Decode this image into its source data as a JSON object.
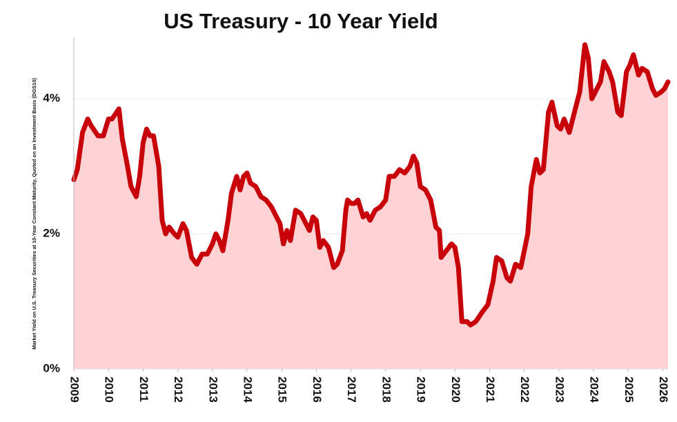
{
  "chart_data": {
    "type": "area-line",
    "title": "US Treasury - 10 Year Yield",
    "y_label": "Market Yield on U.S. Treasury Securities at 10-Year Constant Maturity, Quoted on an Investment Basis (DGS10)",
    "color": "#c8000a",
    "fill_color": "#ffd3d3",
    "grid": true,
    "xlim": [
      2009,
      2026.15
    ],
    "xticks": [
      2009,
      2010,
      2011,
      2012,
      2013,
      2014,
      2015,
      2016,
      2017,
      2018,
      2019,
      2020,
      2021,
      2022,
      2023,
      2024,
      2025,
      2026
    ],
    "ylim": [
      0,
      4.9
    ],
    "yticks": [
      {
        "value": 0,
        "label": "0%"
      },
      {
        "value": 2,
        "label": "2%"
      },
      {
        "value": 4,
        "label": "4%"
      }
    ],
    "x": [
      2009.0,
      2009.1,
      2009.25,
      2009.4,
      2009.5,
      2009.7,
      2009.85,
      2010.0,
      2010.1,
      2010.3,
      2010.4,
      2010.55,
      2010.65,
      2010.8,
      2010.9,
      2011.0,
      2011.1,
      2011.2,
      2011.3,
      2011.45,
      2011.55,
      2011.65,
      2011.75,
      2011.9,
      2012.0,
      2012.15,
      2012.25,
      2012.4,
      2012.55,
      2012.7,
      2012.85,
      2013.0,
      2013.1,
      2013.2,
      2013.3,
      2013.45,
      2013.55,
      2013.7,
      2013.8,
      2013.9,
      2014.0,
      2014.1,
      2014.25,
      2014.4,
      2014.55,
      2014.7,
      2014.8,
      2014.95,
      2015.05,
      2015.15,
      2015.25,
      2015.4,
      2015.55,
      2015.7,
      2015.8,
      2015.9,
      2016.0,
      2016.1,
      2016.2,
      2016.35,
      2016.5,
      2016.6,
      2016.75,
      2016.85,
      2016.9,
      2017.0,
      2017.1,
      2017.2,
      2017.35,
      2017.45,
      2017.55,
      2017.7,
      2017.85,
      2018.0,
      2018.1,
      2018.25,
      2018.4,
      2018.55,
      2018.7,
      2018.8,
      2018.9,
      2019.0,
      2019.15,
      2019.3,
      2019.45,
      2019.55,
      2019.6,
      2019.75,
      2019.9,
      2020.0,
      2020.1,
      2020.2,
      2020.35,
      2020.45,
      2020.6,
      2020.8,
      2020.95,
      2021.1,
      2021.2,
      2021.35,
      2021.5,
      2021.6,
      2021.75,
      2021.9,
      2022.0,
      2022.1,
      2022.2,
      2022.35,
      2022.45,
      2022.55,
      2022.7,
      2022.8,
      2022.95,
      2023.05,
      2023.15,
      2023.3,
      2023.45,
      2023.6,
      2023.75,
      2023.85,
      2023.95,
      2024.1,
      2024.2,
      2024.3,
      2024.45,
      2024.55,
      2024.7,
      2024.8,
      2024.95,
      2025.05,
      2025.15,
      2025.3,
      2025.4,
      2025.55,
      2025.7,
      2025.8,
      2025.95,
      2026.05,
      2026.15
    ],
    "values": [
      2.8,
      2.95,
      3.5,
      3.7,
      3.6,
      3.45,
      3.45,
      3.7,
      3.7,
      3.85,
      3.4,
      3.0,
      2.7,
      2.55,
      2.85,
      3.35,
      3.55,
      3.45,
      3.45,
      3.0,
      2.2,
      2.0,
      2.1,
      2.0,
      1.95,
      2.15,
      2.05,
      1.65,
      1.55,
      1.7,
      1.7,
      1.85,
      2.0,
      1.9,
      1.75,
      2.2,
      2.6,
      2.85,
      2.65,
      2.85,
      2.9,
      2.75,
      2.7,
      2.55,
      2.5,
      2.4,
      2.3,
      2.15,
      1.85,
      2.05,
      1.9,
      2.35,
      2.3,
      2.15,
      2.05,
      2.25,
      2.2,
      1.8,
      1.9,
      1.8,
      1.5,
      1.55,
      1.75,
      2.35,
      2.5,
      2.45,
      2.45,
      2.5,
      2.25,
      2.3,
      2.2,
      2.35,
      2.4,
      2.5,
      2.85,
      2.85,
      2.95,
      2.9,
      3.0,
      3.15,
      3.05,
      2.7,
      2.65,
      2.5,
      2.1,
      2.05,
      1.65,
      1.75,
      1.85,
      1.8,
      1.5,
      0.7,
      0.7,
      0.65,
      0.7,
      0.85,
      0.95,
      1.3,
      1.65,
      1.6,
      1.35,
      1.3,
      1.55,
      1.5,
      1.75,
      2.0,
      2.7,
      3.1,
      2.9,
      2.95,
      3.8,
      3.95,
      3.6,
      3.55,
      3.7,
      3.5,
      3.8,
      4.1,
      4.8,
      4.6,
      4.0,
      4.15,
      4.25,
      4.55,
      4.4,
      4.25,
      3.8,
      3.75,
      4.4,
      4.5,
      4.65,
      4.35,
      4.45,
      4.4,
      4.15,
      4.05,
      4.1,
      4.15,
      4.25
    ]
  }
}
